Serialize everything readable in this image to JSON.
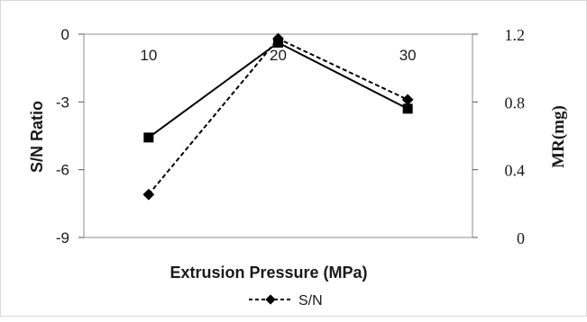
{
  "chart_data": {
    "type": "line",
    "xlabel": "Extrusion Pressure (MPa)",
    "categories": [
      "10",
      "20",
      "30"
    ],
    "y_left": {
      "label": "S/N Ratio",
      "ylim": [
        -9,
        0
      ],
      "ticks": [
        "0",
        "-3",
        "-6",
        "-9"
      ]
    },
    "y_right": {
      "label": "MR(mg)",
      "ylim": [
        0,
        1.2
      ],
      "ticks": [
        "1.2",
        "0.8",
        "0.4",
        "0"
      ]
    },
    "series": [
      {
        "name": "S/N",
        "axis": "left",
        "values": [
          -7.1,
          -0.2,
          -2.9
        ],
        "line_style": "dashed",
        "marker": "diamond",
        "color": "#000000"
      },
      {
        "axis": "right",
        "values": [
          0.59,
          1.15,
          0.76
        ],
        "line_style": "solid",
        "marker": "square",
        "color": "#000000"
      }
    ],
    "legend": {
      "position": "bottom",
      "entries": [
        "S/N"
      ]
    },
    "grid": false
  }
}
